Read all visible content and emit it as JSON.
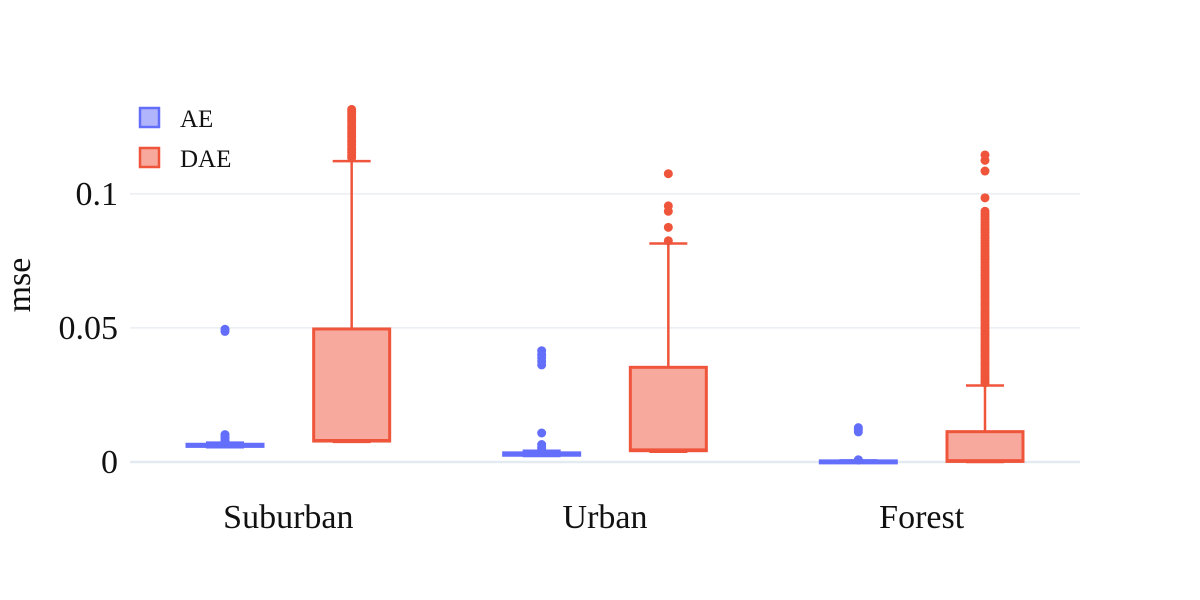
{
  "chart_data": {
    "type": "box",
    "title": "",
    "xlabel": "",
    "ylabel": "mse",
    "ylim": [
      -0.003,
      0.135
    ],
    "yticks": [
      {
        "value": 0,
        "label": "0"
      },
      {
        "value": 0.05,
        "label": "0.05"
      },
      {
        "value": 0.1,
        "label": "0.1"
      }
    ],
    "categories": [
      "Suburban",
      "Urban",
      "Forest"
    ],
    "grid": true,
    "legend": "top-left",
    "series": [
      {
        "name": "AE",
        "color": "#636efa",
        "fill": "#b1b6fc",
        "boxes": [
          {
            "min": 0.0055,
            "q1": 0.0058,
            "median": 0.006,
            "q3": 0.0066,
            "max": 0.0072,
            "outliers": [
              0.0495,
              0.0487,
              0.0102,
              0.0094,
              0.0088,
              0.008,
              0.0076
            ]
          },
          {
            "min": 0.0022,
            "q1": 0.0025,
            "median": 0.003,
            "q3": 0.0034,
            "max": 0.0042,
            "outliers": [
              0.0415,
              0.04,
              0.0388,
              0.0375,
              0.0362,
              0.0108,
              0.0065,
              0.0056,
              0.0049
            ]
          },
          {
            "min": 0.0,
            "q1": 0.0001,
            "median": 0.0002,
            "q3": 0.0004,
            "max": 0.0006,
            "outliers": [
              0.0128,
              0.012,
              0.0112,
              0.0008,
              0.0007
            ]
          }
        ]
      },
      {
        "name": "DAE",
        "color": "#ef553b",
        "fill": "#f8a99d",
        "boxes": [
          {
            "min": 0.0075,
            "q1": 0.0078,
            "median": 0.008,
            "q3": 0.0496,
            "max": 0.1122,
            "outliers": [
              0.1315,
              0.1305,
              0.1295,
              0.1285,
              0.1275,
              0.1265,
              0.1255,
              0.1245,
              0.1235,
              0.1225,
              0.1215,
              0.1205,
              0.1195,
              0.1185,
              0.1175,
              0.1165,
              0.1155,
              0.1145,
              0.1135
            ]
          },
          {
            "min": 0.0038,
            "q1": 0.0042,
            "median": 0.0045,
            "q3": 0.0353,
            "max": 0.0815,
            "outliers": [
              0.1075,
              0.0955,
              0.0935,
              0.0875,
              0.0825
            ]
          },
          {
            "min": 0.0,
            "q1": 0.0002,
            "median": 0.0005,
            "q3": 0.0113,
            "max": 0.0285,
            "outliers": [
              0.1145,
              0.1125,
              0.1085,
              0.0985,
              0.0935,
              0.0925,
              0.0915,
              0.0905,
              0.0895,
              0.0885,
              0.0875,
              0.0865,
              0.0855,
              0.0845,
              0.0835,
              0.0825,
              0.0815,
              0.0805,
              0.0795,
              0.0785,
              0.0775,
              0.0765,
              0.0755,
              0.0745,
              0.0735,
              0.0725,
              0.0715,
              0.0705,
              0.0695,
              0.0685,
              0.0675,
              0.0665,
              0.0655,
              0.0645,
              0.0635,
              0.0625,
              0.0615,
              0.0605,
              0.0595,
              0.0585,
              0.0575,
              0.0565,
              0.0555,
              0.0545,
              0.0535,
              0.0525,
              0.0515,
              0.0505,
              0.0495,
              0.0485,
              0.0475,
              0.0465,
              0.0455,
              0.0445,
              0.0435,
              0.0425,
              0.0415,
              0.0405,
              0.0395,
              0.0385,
              0.0375,
              0.0365,
              0.0355,
              0.0345,
              0.0335,
              0.0325,
              0.0315,
              0.0305,
              0.0295
            ]
          }
        ]
      }
    ]
  }
}
